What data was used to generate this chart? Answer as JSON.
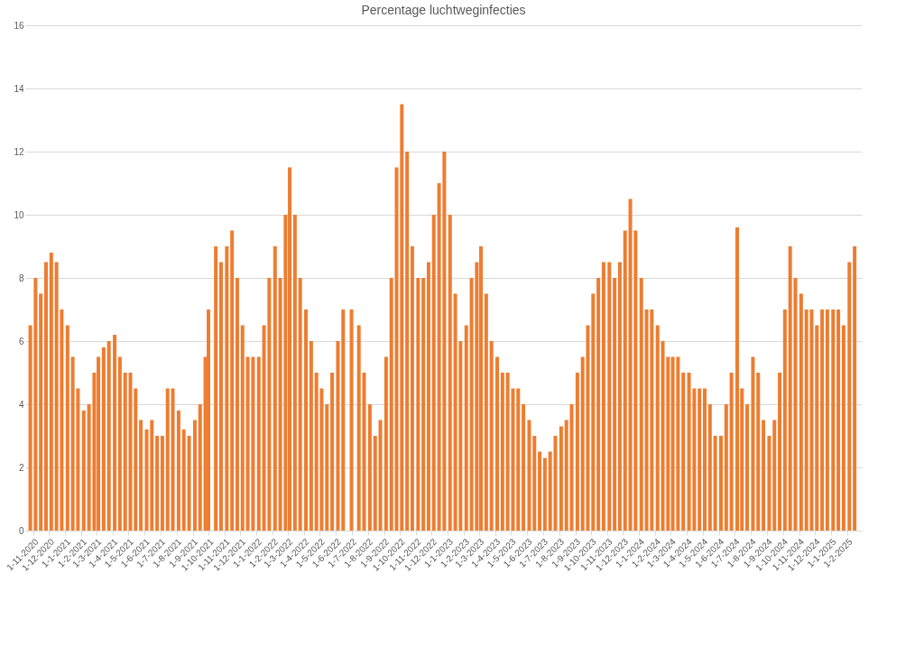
{
  "chart_data": {
    "type": "bar",
    "title": "Percentage luchtweginfecties",
    "x": [
      "2020-10-26",
      "2020-11-05",
      "2020-11-15",
      "2020-11-25",
      "2020-12-05",
      "2020-12-15",
      "2020-12-25",
      "2021-01-05",
      "2021-01-15",
      "2021-01-25",
      "2021-02-05",
      "2021-02-15",
      "2021-02-25",
      "2021-03-05",
      "2021-03-15",
      "2021-03-25",
      "2021-04-05",
      "2021-04-15",
      "2021-04-25",
      "2021-05-05",
      "2021-05-15",
      "2021-05-25",
      "2021-06-05",
      "2021-06-15",
      "2021-06-25",
      "2021-07-05",
      "2021-07-15",
      "2021-07-25",
      "2021-08-05",
      "2021-08-15",
      "2021-08-25",
      "2021-09-05",
      "2021-09-15",
      "2021-09-25",
      "2021-10-01",
      "2021-10-05",
      "2021-10-15",
      "2021-10-25",
      "2021-11-05",
      "2021-11-15",
      "2021-11-25",
      "2021-12-05",
      "2021-12-15",
      "2021-12-25",
      "2022-01-05",
      "2022-01-15",
      "2022-01-25",
      "2022-02-05",
      "2022-02-15",
      "2022-02-25",
      "2022-03-05",
      "2022-03-15",
      "2022-03-25",
      "2022-04-05",
      "2022-04-15",
      "2022-04-25",
      "2022-05-05",
      "2022-05-15",
      "2022-05-25",
      "2022-06-05",
      "2022-06-15",
      "2022-06-22",
      "2022-07-01",
      "2022-07-15",
      "2022-07-25",
      "2022-08-05",
      "2022-08-15",
      "2022-08-25",
      "2022-09-05",
      "2022-09-15",
      "2022-09-25",
      "2022-10-05",
      "2022-10-15",
      "2022-10-25",
      "2022-11-05",
      "2022-11-15",
      "2022-11-25",
      "2022-12-05",
      "2022-12-15",
      "2022-12-25",
      "2023-01-05",
      "2023-01-15",
      "2023-01-25",
      "2023-02-05",
      "2023-02-15",
      "2023-02-25",
      "2023-03-05",
      "2023-03-15",
      "2023-03-25",
      "2023-04-05",
      "2023-04-15",
      "2023-04-25",
      "2023-05-05",
      "2023-05-15",
      "2023-05-25",
      "2023-06-05",
      "2023-06-15",
      "2023-06-25",
      "2023-07-05",
      "2023-07-15",
      "2023-07-25",
      "2023-08-05",
      "2023-08-15",
      "2023-08-25",
      "2023-09-05",
      "2023-09-15",
      "2023-09-25",
      "2023-10-05",
      "2023-10-15",
      "2023-10-25",
      "2023-11-05",
      "2023-11-15",
      "2023-11-25",
      "2023-12-05",
      "2023-12-15",
      "2023-12-25",
      "2024-01-05",
      "2024-01-15",
      "2024-01-25",
      "2024-02-05",
      "2024-02-15",
      "2024-02-25",
      "2024-03-05",
      "2024-03-15",
      "2024-03-25",
      "2024-04-05",
      "2024-04-15",
      "2024-04-25",
      "2024-05-05",
      "2024-05-15",
      "2024-05-25",
      "2024-06-05",
      "2024-06-15",
      "2024-06-25",
      "2024-07-06",
      "2024-07-15",
      "2024-07-25",
      "2024-08-05",
      "2024-08-15",
      "2024-08-25",
      "2024-09-05",
      "2024-09-15",
      "2024-09-25",
      "2024-10-05",
      "2024-10-15",
      "2024-10-25",
      "2024-11-05",
      "2024-11-15",
      "2024-11-25",
      "2024-12-05",
      "2024-12-15",
      "2024-12-25",
      "2025-01-05",
      "2025-01-15",
      "2025-01-25",
      "2025-02-05",
      "2025-02-15"
    ],
    "series": [
      {
        "color": "#ed7d31",
        "values": [
          6.5,
          8.0,
          7.5,
          8.5,
          8.8,
          8.5,
          7.0,
          6.5,
          5.5,
          4.5,
          3.8,
          4.0,
          5.0,
          5.5,
          5.8,
          6.0,
          6.2,
          5.5,
          5.0,
          5.0,
          4.5,
          3.5,
          3.2,
          3.5,
          3.0,
          3.0,
          4.5,
          4.5,
          3.8,
          3.2,
          3.0,
          3.5,
          4.0,
          5.5,
          7.0,
          null,
          9.0,
          8.5,
          9.0,
          9.5,
          8.0,
          6.5,
          5.5,
          5.5,
          5.5,
          6.5,
          8.0,
          9.0,
          8.0,
          10.0,
          11.5,
          10.0,
          8.0,
          7.0,
          6.0,
          5.0,
          4.5,
          4.0,
          5.0,
          6.0,
          7.0,
          null,
          7.0,
          6.5,
          5.0,
          4.0,
          3.0,
          3.5,
          5.5,
          8.0,
          11.5,
          13.5,
          12.0,
          9.0,
          8.0,
          8.0,
          8.5,
          10.0,
          11.0,
          12.0,
          10.0,
          7.5,
          6.0,
          6.5,
          8.0,
          8.5,
          9.0,
          7.5,
          6.0,
          5.5,
          5.0,
          5.0,
          4.5,
          4.5,
          4.0,
          3.5,
          3.0,
          2.5,
          2.3,
          2.5,
          3.0,
          3.3,
          3.5,
          4.0,
          5.0,
          5.5,
          6.5,
          7.5,
          8.0,
          8.5,
          8.5,
          8.0,
          8.5,
          9.5,
          10.5,
          9.5,
          8.0,
          7.0,
          7.0,
          6.5,
          6.0,
          5.5,
          5.5,
          5.5,
          5.0,
          5.0,
          4.5,
          4.5,
          4.5,
          4.0,
          3.0,
          3.0,
          4.0,
          5.0,
          9.6,
          4.5,
          4.0,
          5.5,
          5.0,
          3.5,
          3.0,
          3.5,
          5.0,
          7.0,
          9.0,
          8.0,
          7.5,
          7.0,
          7.0,
          6.5,
          7.0,
          7.0,
          7.0,
          7.0,
          6.5,
          8.5,
          9.0
        ]
      }
    ],
    "xlim": [
      "2020-10-25",
      "2025-02-20"
    ],
    "xticks": [
      {
        "value": "2020-11-01",
        "label": "1-11-2020"
      },
      {
        "value": "2020-12-01",
        "label": "1-12-2020"
      },
      {
        "value": "2021-01-01",
        "label": "1-1-2021"
      },
      {
        "value": "2021-02-01",
        "label": "1-2-2021"
      },
      {
        "value": "2021-03-01",
        "label": "1-3-2021"
      },
      {
        "value": "2021-04-01",
        "label": "1-4-2021"
      },
      {
        "value": "2021-05-01",
        "label": "1-5-2021"
      },
      {
        "value": "2021-06-01",
        "label": "1-6-2021"
      },
      {
        "value": "2021-07-01",
        "label": "1-7-2021"
      },
      {
        "value": "2021-08-01",
        "label": "1-8-2021"
      },
      {
        "value": "2021-09-01",
        "label": "1-9-2021"
      },
      {
        "value": "2021-10-01",
        "label": "1-10-2021"
      },
      {
        "value": "2021-11-01",
        "label": "1-11-2021"
      },
      {
        "value": "2021-12-01",
        "label": "1-12-2021"
      },
      {
        "value": "2022-01-01",
        "label": "1-1-2022"
      },
      {
        "value": "2022-02-01",
        "label": "1-2-2022"
      },
      {
        "value": "2022-03-01",
        "label": "1-3-2022"
      },
      {
        "value": "2022-04-01",
        "label": "1-4-2022"
      },
      {
        "value": "2022-05-01",
        "label": "1-5-2022"
      },
      {
        "value": "2022-06-01",
        "label": "1-6-2022"
      },
      {
        "value": "2022-07-01",
        "label": "1-7-2022"
      },
      {
        "value": "2022-08-01",
        "label": "1-8-2022"
      },
      {
        "value": "2022-09-01",
        "label": "1-9-2022"
      },
      {
        "value": "2022-10-01",
        "label": "1-10-2022"
      },
      {
        "value": "2022-11-01",
        "label": "1-11-2022"
      },
      {
        "value": "2022-12-01",
        "label": "1-12-2022"
      },
      {
        "value": "2023-01-01",
        "label": "1-1-2023"
      },
      {
        "value": "2023-02-01",
        "label": "1-2-2023"
      },
      {
        "value": "2023-03-01",
        "label": "1-3-2023"
      },
      {
        "value": "2023-04-01",
        "label": "1-4-2023"
      },
      {
        "value": "2023-05-01",
        "label": "1-5-2023"
      },
      {
        "value": "2023-06-01",
        "label": "1-6-2023"
      },
      {
        "value": "2023-07-01",
        "label": "1-7-2023"
      },
      {
        "value": "2023-08-01",
        "label": "1-8-2023"
      },
      {
        "value": "2023-09-01",
        "label": "1-9-2023"
      },
      {
        "value": "2023-10-01",
        "label": "1-10-2023"
      },
      {
        "value": "2023-11-01",
        "label": "1-11-2023"
      },
      {
        "value": "2023-12-01",
        "label": "1-12-2023"
      },
      {
        "value": "2024-01-01",
        "label": "1-1-2024"
      },
      {
        "value": "2024-02-01",
        "label": "1-2-2024"
      },
      {
        "value": "2024-03-01",
        "label": "1-3-2024"
      },
      {
        "value": "2024-04-01",
        "label": "1-4-2024"
      },
      {
        "value": "2024-05-01",
        "label": "1-5-2024"
      },
      {
        "value": "2024-06-01",
        "label": "1-6-2024"
      },
      {
        "value": "2024-07-01",
        "label": "1-7-2024"
      },
      {
        "value": "2024-08-01",
        "label": "1-8-2024"
      },
      {
        "value": "2024-09-01",
        "label": "1-9-2024"
      },
      {
        "value": "2024-10-01",
        "label": "1-10-2024"
      },
      {
        "value": "2024-11-01",
        "label": "1-11-2024"
      },
      {
        "value": "2024-12-01",
        "label": "1-12-2024"
      },
      {
        "value": "2025-01-01",
        "label": "1-1-2025"
      },
      {
        "value": "2025-02-01",
        "label": "1-2-2025"
      }
    ],
    "ylim": [
      0,
      16
    ],
    "yticks": [
      0,
      2,
      4,
      6,
      8,
      10,
      12,
      14,
      16
    ],
    "grid": "y"
  }
}
